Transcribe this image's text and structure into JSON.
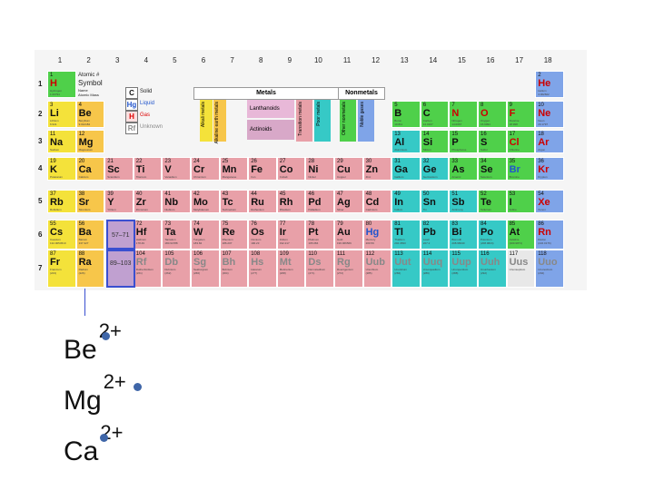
{
  "groups": [
    "1",
    "2",
    "3",
    "4",
    "5",
    "6",
    "7",
    "8",
    "9",
    "10",
    "11",
    "12",
    "13",
    "14",
    "15",
    "16",
    "17",
    "18"
  ],
  "periods": [
    "1",
    "2",
    "3",
    "4",
    "5",
    "6",
    "7"
  ],
  "legend": {
    "atomic_label": "Atomic #",
    "symbol_label": "Symbol",
    "name_label": "Name",
    "mass_label": "Atomic Mass",
    "states": [
      {
        "sym": "C",
        "label": "Solid"
      },
      {
        "sym": "Hg",
        "label": "Liquid"
      },
      {
        "sym": "H",
        "label": "Gas"
      },
      {
        "sym": "Rf",
        "label": "Unknown"
      }
    ],
    "metals": "Metals",
    "nonmetals": "Nonmetals",
    "alkali": "Alkali metals",
    "alkaline": "Alkaline earth metals",
    "lanthanoids": "Lanthanoids",
    "actinoids": "Actinoids",
    "transition": "Transition metals",
    "poor": "Poor metals",
    "other_nonmetals": "Other nonmetals",
    "noble": "Noble gases"
  },
  "placeholders": {
    "lan": "57–71",
    "act": "89–103"
  },
  "colors": {
    "alkali": "#f4e23a",
    "alkaline": "#f7c64a",
    "transition": "#e8a0a8",
    "poor": "#36c9c6",
    "nonmetal": "#4fd04a",
    "halogen": "#4fd04a",
    "noble": "#7fa4e8",
    "lan": "#e8b8d8",
    "act": "#d8a8c8",
    "unknown": "#e8e8e8",
    "ion_dot": "#3f66a8",
    "highlight": "#3a4fd0"
  },
  "elements": [
    {
      "n": "1",
      "s": "H",
      "g": 1,
      "p": 1,
      "c": "nonmetal",
      "name": "Hydrogen",
      "m": "1.00794"
    },
    {
      "n": "2",
      "s": "He",
      "g": 18,
      "p": 1,
      "c": "noble",
      "name": "Helium",
      "m": "4.002602"
    },
    {
      "n": "3",
      "s": "Li",
      "g": 1,
      "p": 2,
      "c": "alkali",
      "name": "Lithium",
      "m": "6.941"
    },
    {
      "n": "4",
      "s": "Be",
      "g": 2,
      "p": 2,
      "c": "alkaline",
      "name": "Beryllium",
      "m": "9.012182"
    },
    {
      "n": "5",
      "s": "B",
      "g": 13,
      "p": 2,
      "c": "nonmetal",
      "name": "Boron",
      "m": "10.811"
    },
    {
      "n": "6",
      "s": "C",
      "g": 14,
      "p": 2,
      "c": "nonmetal",
      "name": "Carbon",
      "m": "12.0107"
    },
    {
      "n": "7",
      "s": "N",
      "g": 15,
      "p": 2,
      "c": "nonmetal",
      "name": "Nitrogen",
      "m": "14.0067"
    },
    {
      "n": "8",
      "s": "O",
      "g": 16,
      "p": 2,
      "c": "nonmetal",
      "name": "Oxygen",
      "m": "15.9994"
    },
    {
      "n": "9",
      "s": "F",
      "g": 17,
      "p": 2,
      "c": "halogen",
      "name": "Fluorine",
      "m": "18.998"
    },
    {
      "n": "10",
      "s": "Ne",
      "g": 18,
      "p": 2,
      "c": "noble",
      "name": "Neon",
      "m": "20.1797"
    },
    {
      "n": "11",
      "s": "Na",
      "g": 1,
      "p": 3,
      "c": "alkali",
      "name": "Sodium",
      "m": "22.98976928"
    },
    {
      "n": "12",
      "s": "Mg",
      "g": 2,
      "p": 3,
      "c": "alkaline",
      "name": "Magnesium",
      "m": "24.3050"
    },
    {
      "n": "13",
      "s": "Al",
      "g": 13,
      "p": 3,
      "c": "poor",
      "name": "Aluminium",
      "m": "26.98"
    },
    {
      "n": "14",
      "s": "Si",
      "g": 14,
      "p": 3,
      "c": "nonmetal",
      "name": "Silicon",
      "m": "28.0855"
    },
    {
      "n": "15",
      "s": "P",
      "g": 15,
      "p": 3,
      "c": "nonmetal",
      "name": "Phosphorus",
      "m": "30.97"
    },
    {
      "n": "16",
      "s": "S",
      "g": 16,
      "p": 3,
      "c": "nonmetal",
      "name": "Sulfur",
      "m": "32.065"
    },
    {
      "n": "17",
      "s": "Cl",
      "g": 17,
      "p": 3,
      "c": "halogen",
      "name": "Chlorine",
      "m": "35.453"
    },
    {
      "n": "18",
      "s": "Ar",
      "g": 18,
      "p": 3,
      "c": "noble",
      "name": "Argon",
      "m": "39.948"
    },
    {
      "n": "19",
      "s": "K",
      "g": 1,
      "p": 4,
      "c": "alkali",
      "name": "Potassium",
      "m": "39.0983"
    },
    {
      "n": "20",
      "s": "Ca",
      "g": 2,
      "p": 4,
      "c": "alkaline",
      "name": "Calcium",
      "m": "40.078"
    },
    {
      "n": "21",
      "s": "Sc",
      "g": 3,
      "p": 4,
      "c": "transition",
      "name": "Scandium",
      "m": "44.955912"
    },
    {
      "n": "22",
      "s": "Ti",
      "g": 4,
      "p": 4,
      "c": "transition",
      "name": "Titanium",
      "m": "47.867"
    },
    {
      "n": "23",
      "s": "V",
      "g": 5,
      "p": 4,
      "c": "transition",
      "name": "Vanadium",
      "m": "50.9415"
    },
    {
      "n": "24",
      "s": "Cr",
      "g": 6,
      "p": 4,
      "c": "transition",
      "name": "Chromium",
      "m": "51.9961"
    },
    {
      "n": "25",
      "s": "Mn",
      "g": 7,
      "p": 4,
      "c": "transition",
      "name": "Manganese",
      "m": "54.938045"
    },
    {
      "n": "26",
      "s": "Fe",
      "g": 8,
      "p": 4,
      "c": "transition",
      "name": "Iron",
      "m": "55.845"
    },
    {
      "n": "27",
      "s": "Co",
      "g": 9,
      "p": 4,
      "c": "transition",
      "name": "Cobalt",
      "m": "58.933195"
    },
    {
      "n": "28",
      "s": "Ni",
      "g": 10,
      "p": 4,
      "c": "transition",
      "name": "Nickel",
      "m": "58.6934"
    },
    {
      "n": "29",
      "s": "Cu",
      "g": 11,
      "p": 4,
      "c": "transition",
      "name": "Copper",
      "m": "63.546"
    },
    {
      "n": "30",
      "s": "Zn",
      "g": 12,
      "p": 4,
      "c": "transition",
      "name": "Zinc",
      "m": "65.38"
    },
    {
      "n": "31",
      "s": "Ga",
      "g": 13,
      "p": 4,
      "c": "poor",
      "name": "Gallium",
      "m": "69.723"
    },
    {
      "n": "32",
      "s": "Ge",
      "g": 14,
      "p": 4,
      "c": "poor",
      "name": "Germanium",
      "m": "72.64"
    },
    {
      "n": "33",
      "s": "As",
      "g": 15,
      "p": 4,
      "c": "nonmetal",
      "name": "Arsenic",
      "m": "74.92160"
    },
    {
      "n": "34",
      "s": "Se",
      "g": 16,
      "p": 4,
      "c": "nonmetal",
      "name": "Selenium",
      "m": "78.96"
    },
    {
      "n": "35",
      "s": "Br",
      "g": 17,
      "p": 4,
      "c": "halogen",
      "name": "Bromine",
      "m": "79.904"
    },
    {
      "n": "36",
      "s": "Kr",
      "g": 18,
      "p": 4,
      "c": "noble",
      "name": "Krypton",
      "m": "83.798"
    },
    {
      "n": "37",
      "s": "Rb",
      "g": 1,
      "p": 5,
      "c": "alkali",
      "name": "Rubidium",
      "m": "85.4678"
    },
    {
      "n": "38",
      "s": "Sr",
      "g": 2,
      "p": 5,
      "c": "alkaline",
      "name": "Strontium",
      "m": "87.62"
    },
    {
      "n": "39",
      "s": "Y",
      "g": 3,
      "p": 5,
      "c": "transition",
      "name": "Yttrium",
      "m": "88.90585"
    },
    {
      "n": "40",
      "s": "Zr",
      "g": 4,
      "p": 5,
      "c": "transition",
      "name": "Zirconium",
      "m": "91.224"
    },
    {
      "n": "41",
      "s": "Nb",
      "g": 5,
      "p": 5,
      "c": "transition",
      "name": "Niobium",
      "m": "92.90638"
    },
    {
      "n": "42",
      "s": "Mo",
      "g": 6,
      "p": 5,
      "c": "transition",
      "name": "Molybdenum",
      "m": "95.96"
    },
    {
      "n": "43",
      "s": "Tc",
      "g": 7,
      "p": 5,
      "c": "transition",
      "name": "Technetium",
      "m": "(97.9072)"
    },
    {
      "n": "44",
      "s": "Ru",
      "g": 8,
      "p": 5,
      "c": "transition",
      "name": "Ruthenium",
      "m": "101.07"
    },
    {
      "n": "45",
      "s": "Rh",
      "g": 9,
      "p": 5,
      "c": "transition",
      "name": "Rhodium",
      "m": "102.90550"
    },
    {
      "n": "46",
      "s": "Pd",
      "g": 10,
      "p": 5,
      "c": "transition",
      "name": "Palladium",
      "m": "106.42"
    },
    {
      "n": "47",
      "s": "Ag",
      "g": 11,
      "p": 5,
      "c": "transition",
      "name": "Silver",
      "m": "107.8682"
    },
    {
      "n": "48",
      "s": "Cd",
      "g": 12,
      "p": 5,
      "c": "transition",
      "name": "Cadmium",
      "m": "112.411"
    },
    {
      "n": "49",
      "s": "In",
      "g": 13,
      "p": 5,
      "c": "poor",
      "name": "Indium",
      "m": "114.818"
    },
    {
      "n": "50",
      "s": "Sn",
      "g": 14,
      "p": 5,
      "c": "poor",
      "name": "Tin",
      "m": "118.710"
    },
    {
      "n": "51",
      "s": "Sb",
      "g": 15,
      "p": 5,
      "c": "poor",
      "name": "Antimony",
      "m": "121.760"
    },
    {
      "n": "52",
      "s": "Te",
      "g": 16,
      "p": 5,
      "c": "nonmetal",
      "name": "Tellurium",
      "m": "127.60"
    },
    {
      "n": "53",
      "s": "I",
      "g": 17,
      "p": 5,
      "c": "halogen",
      "name": "Iodine",
      "m": "126.90447"
    },
    {
      "n": "54",
      "s": "Xe",
      "g": 18,
      "p": 5,
      "c": "noble",
      "name": "Xenon",
      "m": "131.293"
    },
    {
      "n": "55",
      "s": "Cs",
      "g": 1,
      "p": 6,
      "c": "alkali",
      "name": "Caesium",
      "m": "132.9054519"
    },
    {
      "n": "56",
      "s": "Ba",
      "g": 2,
      "p": 6,
      "c": "alkaline",
      "name": "Barium",
      "m": "137.327"
    },
    {
      "n": "72",
      "s": "Hf",
      "g": 4,
      "p": 6,
      "c": "transition",
      "name": "Hafnium",
      "m": "178.49"
    },
    {
      "n": "73",
      "s": "Ta",
      "g": 5,
      "p": 6,
      "c": "transition",
      "name": "Tantalum",
      "m": "180.94788"
    },
    {
      "n": "74",
      "s": "W",
      "g": 6,
      "p": 6,
      "c": "transition",
      "name": "Tungsten",
      "m": "183.84"
    },
    {
      "n": "75",
      "s": "Re",
      "g": 7,
      "p": 6,
      "c": "transition",
      "name": "Rhenium",
      "m": "186.207"
    },
    {
      "n": "76",
      "s": "Os",
      "g": 8,
      "p": 6,
      "c": "transition",
      "name": "Osmium",
      "m": "190.23"
    },
    {
      "n": "77",
      "s": "Ir",
      "g": 9,
      "p": 6,
      "c": "transition",
      "name": "Iridium",
      "m": "192.217"
    },
    {
      "n": "78",
      "s": "Pt",
      "g": 10,
      "p": 6,
      "c": "transition",
      "name": "Platinum",
      "m": "195.084"
    },
    {
      "n": "79",
      "s": "Au",
      "g": 11,
      "p": 6,
      "c": "transition",
      "name": "Gold",
      "m": "196.966569"
    },
    {
      "n": "80",
      "s": "Hg",
      "g": 12,
      "p": 6,
      "c": "transition",
      "name": "Mercury",
      "m": "200.59"
    },
    {
      "n": "81",
      "s": "Tl",
      "g": 13,
      "p": 6,
      "c": "poor",
      "name": "Thallium",
      "m": "204.3833"
    },
    {
      "n": "82",
      "s": "Pb",
      "g": 14,
      "p": 6,
      "c": "poor",
      "name": "Lead",
      "m": "207.2"
    },
    {
      "n": "83",
      "s": "Bi",
      "g": 15,
      "p": 6,
      "c": "poor",
      "name": "Bismuth",
      "m": "208.98040"
    },
    {
      "n": "84",
      "s": "Po",
      "g": 16,
      "p": 6,
      "c": "poor",
      "name": "Polonium",
      "m": "(208.9824)"
    },
    {
      "n": "85",
      "s": "At",
      "g": 17,
      "p": 6,
      "c": "halogen",
      "name": "Astatine",
      "m": "(209.9871)"
    },
    {
      "n": "86",
      "s": "Rn",
      "g": 18,
      "p": 6,
      "c": "noble",
      "name": "Radon",
      "m": "(222.0176)"
    },
    {
      "n": "87",
      "s": "Fr",
      "g": 1,
      "p": 7,
      "c": "alkali",
      "name": "Francium",
      "m": "(223)"
    },
    {
      "n": "88",
      "s": "Ra",
      "g": 2,
      "p": 7,
      "c": "alkaline",
      "name": "Radium",
      "m": "(226)"
    },
    {
      "n": "104",
      "s": "Rf",
      "g": 4,
      "p": 7,
      "c": "transition",
      "name": "Rutherfordium",
      "m": "(261)"
    },
    {
      "n": "105",
      "s": "Db",
      "g": 5,
      "p": 7,
      "c": "transition",
      "name": "Dubnium",
      "m": "(262)"
    },
    {
      "n": "106",
      "s": "Sg",
      "g": 6,
      "p": 7,
      "c": "transition",
      "name": "Seaborgium",
      "m": "(266)"
    },
    {
      "n": "107",
      "s": "Bh",
      "g": 7,
      "p": 7,
      "c": "transition",
      "name": "Bohrium",
      "m": "(264)"
    },
    {
      "n": "108",
      "s": "Hs",
      "g": 8,
      "p": 7,
      "c": "transition",
      "name": "Hassium",
      "m": "(277)"
    },
    {
      "n": "109",
      "s": "Mt",
      "g": 9,
      "p": 7,
      "c": "transition",
      "name": "Meitnerium",
      "m": "(268)"
    },
    {
      "n": "110",
      "s": "Ds",
      "g": 10,
      "p": 7,
      "c": "transition",
      "name": "Darmstadtium",
      "m": "(271)"
    },
    {
      "n": "111",
      "s": "Rg",
      "g": 11,
      "p": 7,
      "c": "transition",
      "name": "Roentgenium",
      "m": "(272)"
    },
    {
      "n": "112",
      "s": "Uub",
      "g": 12,
      "p": 7,
      "c": "transition",
      "name": "Ununbium",
      "m": "(285)"
    },
    {
      "n": "113",
      "s": "Uut",
      "g": 13,
      "p": 7,
      "c": "poor",
      "name": "Ununtrium",
      "m": "(284)"
    },
    {
      "n": "114",
      "s": "Uuq",
      "g": 14,
      "p": 7,
      "c": "poor",
      "name": "Ununquadium",
      "m": "(289)"
    },
    {
      "n": "115",
      "s": "Uup",
      "g": 15,
      "p": 7,
      "c": "poor",
      "name": "Ununpentium",
      "m": "(288)"
    },
    {
      "n": "116",
      "s": "Uuh",
      "g": 16,
      "p": 7,
      "c": "poor",
      "name": "Ununhexium",
      "m": "(292)"
    },
    {
      "n": "117",
      "s": "Uus",
      "g": 17,
      "p": 7,
      "c": "unknown",
      "name": "Ununseptium",
      "m": ""
    },
    {
      "n": "118",
      "s": "Uuo",
      "g": 18,
      "p": 7,
      "c": "noble",
      "name": "Ununoctium",
      "m": "(294)"
    }
  ],
  "ions": [
    {
      "base": "Be",
      "charge": "2+"
    },
    {
      "base": "Mg",
      "charge": "2+"
    },
    {
      "base": "Ca",
      "charge": "2+"
    }
  ]
}
